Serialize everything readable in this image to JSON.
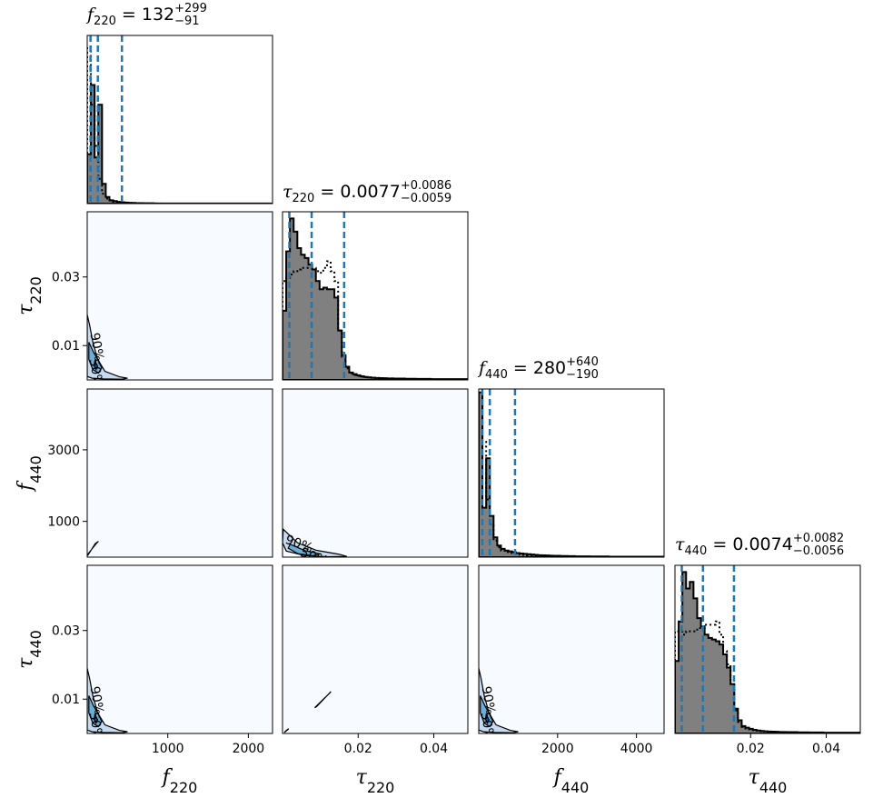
{
  "chart_data": {
    "type": "corner",
    "parameters": [
      {
        "key": "f220",
        "symbol": "f",
        "sub": "220",
        "range": [
          0,
          2300
        ],
        "ticks": [
          1000,
          2000
        ],
        "tick_labels": [
          "1000",
          "2000"
        ]
      },
      {
        "key": "tau220",
        "symbol": "τ",
        "sub": "220",
        "range": [
          0,
          0.049
        ],
        "ticks": [
          0.01,
          0.03
        ],
        "tick_labels": [
          "0.01",
          "0.03"
        ],
        "xticks": [
          0.02,
          0.04
        ],
        "xtick_labels": [
          "0.02",
          "0.04"
        ]
      },
      {
        "key": "f440",
        "symbol": "f",
        "sub": "440",
        "range": [
          0,
          4700
        ],
        "ticks": [
          1000,
          3000
        ],
        "tick_labels": [
          "1000",
          "3000"
        ],
        "xticks": [
          2000,
          4000
        ],
        "xtick_labels": [
          "2000",
          "4000"
        ]
      },
      {
        "key": "tau440",
        "symbol": "τ",
        "sub": "440",
        "range": [
          0,
          0.049
        ],
        "ticks": [
          0.01,
          0.03
        ],
        "tick_labels": [
          "0.01",
          "0.03"
        ],
        "xticks": [
          0.02,
          0.04
        ],
        "xtick_labels": [
          "0.02",
          "0.04"
        ]
      }
    ],
    "marginal_titles": [
      {
        "param": "f220",
        "prefix": " = 132",
        "sup": "+299",
        "sub": "−91",
        "quantiles": [
          41,
          132,
          431
        ]
      },
      {
        "param": "tau220",
        "prefix": " = 0.0077",
        "sup": "+0.0086",
        "sub": "−0.0059",
        "quantiles": [
          0.0018,
          0.0077,
          0.0163
        ]
      },
      {
        "param": "f440",
        "prefix": " = 280",
        "sup": "+640",
        "sub": "−190",
        "quantiles": [
          90,
          280,
          920
        ]
      },
      {
        "param": "tau440",
        "prefix": " = 0.0074",
        "sup": "+0.0082",
        "sub": "−0.0056",
        "quantiles": [
          0.0018,
          0.0074,
          0.0156
        ]
      }
    ],
    "histograms": {
      "f220": {
        "bin_width": 46,
        "solid": [
          0.3,
          0.72,
          0.28,
          0.6,
          0.12,
          0.04,
          0.02,
          0.015,
          0.01,
          0.008,
          0.006,
          0.005,
          0.004,
          0.003,
          0.003,
          0.002,
          0.002,
          0.002,
          0.001,
          0.001,
          0.001,
          0.001,
          0.001,
          0.001,
          0.001,
          0.001,
          0.001,
          0.0005,
          0.0005,
          0.0005,
          0.0005,
          0.0005,
          0.0005,
          0.0005,
          0.0005,
          0.0005,
          0.0005,
          0.0005,
          0.0005,
          0.0005,
          0.0005,
          0.0005,
          0.0005,
          0.0005,
          0.0005,
          0.0005,
          0.0005,
          0.0005,
          0.0005,
          0.0005
        ],
        "dotted": [
          0.95,
          0.6,
          0.35,
          0.15,
          0.06,
          0.03,
          0.02,
          0.01,
          0.008,
          0.006,
          0.004,
          0.003,
          0.002,
          0.002,
          0.001,
          0.001,
          0.001,
          0.001,
          0.001,
          0.001
        ]
      },
      "tau220": {
        "bin_width": 0.00098,
        "solid": [
          0.42,
          0.78,
          0.98,
          0.9,
          0.8,
          0.76,
          0.74,
          0.7,
          0.67,
          0.6,
          0.55,
          0.56,
          0.55,
          0.55,
          0.5,
          0.3,
          0.15,
          0.08,
          0.045,
          0.035,
          0.028,
          0.022,
          0.018,
          0.015,
          0.013,
          0.012,
          0.011,
          0.01,
          0.009,
          0.009,
          0.008,
          0.008,
          0.008,
          0.007,
          0.007,
          0.007,
          0.006,
          0.006,
          0.006,
          0.006,
          0.005,
          0.005,
          0.005,
          0.005,
          0.005,
          0.005,
          0.005,
          0.005,
          0.005,
          0.005
        ],
        "dotted": [
          0.6,
          0.62,
          0.64,
          0.66,
          0.67,
          0.68,
          0.68,
          0.68,
          0.68,
          0.66,
          0.65,
          0.68,
          0.72,
          0.66,
          0.6,
          0.3,
          0.14,
          0.07,
          0.04,
          0.03,
          0.025,
          0.02,
          0.017,
          0.015,
          0.013,
          0.012,
          0.011,
          0.01,
          0.009,
          0.009
        ]
      },
      "f440": {
        "bin_width": 94,
        "solid": [
          1.0,
          0.3,
          0.6,
          0.25,
          0.12,
          0.07,
          0.05,
          0.04,
          0.035,
          0.03,
          0.025,
          0.022,
          0.02,
          0.018,
          0.016,
          0.014,
          0.012,
          0.011,
          0.01,
          0.009,
          0.008,
          0.008,
          0.007,
          0.007,
          0.006,
          0.006,
          0.005,
          0.005,
          0.005,
          0.005,
          0.004,
          0.004,
          0.004,
          0.004,
          0.004,
          0.003,
          0.003,
          0.003,
          0.003,
          0.003,
          0.003,
          0.003,
          0.003,
          0.003,
          0.003,
          0.003,
          0.003,
          0.003,
          0.003,
          0.003
        ],
        "dotted": [
          0.95,
          0.7,
          0.35,
          0.2,
          0.1,
          0.06,
          0.04,
          0.03,
          0.025,
          0.02,
          0.018,
          0.015,
          0.013,
          0.011,
          0.01,
          0.009
        ]
      },
      "tau440": {
        "bin_width": 0.00098,
        "solid": [
          0.44,
          0.68,
          0.98,
          0.88,
          0.92,
          0.82,
          0.7,
          0.65,
          0.6,
          0.58,
          0.57,
          0.56,
          0.54,
          0.48,
          0.4,
          0.3,
          0.15,
          0.08,
          0.045,
          0.035,
          0.028,
          0.022,
          0.018,
          0.015,
          0.013,
          0.012,
          0.011,
          0.01,
          0.009,
          0.009,
          0.008,
          0.008,
          0.008,
          0.007,
          0.007,
          0.007,
          0.006,
          0.006,
          0.006,
          0.006,
          0.005,
          0.005,
          0.005,
          0.005,
          0.005,
          0.005,
          0.005,
          0.005,
          0.005,
          0.005
        ],
        "dotted": [
          0.62,
          0.62,
          0.6,
          0.62,
          0.62,
          0.62,
          0.64,
          0.64,
          0.66,
          0.66,
          0.66,
          0.68,
          0.6,
          0.5,
          0.42,
          0.3,
          0.14,
          0.07,
          0.04,
          0.03,
          0.025,
          0.02,
          0.017,
          0.015
        ]
      }
    },
    "contour_levels": [
      "90%",
      "50%"
    ],
    "contours": {
      "tau220-f220": {
        "labels": [
          "90%",
          "50%"
        ]
      },
      "f440-tau220": {
        "labels": [
          "90%",
          "50%"
        ]
      },
      "tau440-f440": {
        "labels": [
          "90%",
          "50%"
        ]
      },
      "tau440-f220": {
        "labels": [
          "90%",
          "50%"
        ]
      }
    },
    "colors": {
      "quantile_line": "#1f77b4",
      "hist_fill": "#808080",
      "hist_line": "#000000",
      "density_low": "#f7fbff",
      "density_high": "#08519c"
    }
  }
}
